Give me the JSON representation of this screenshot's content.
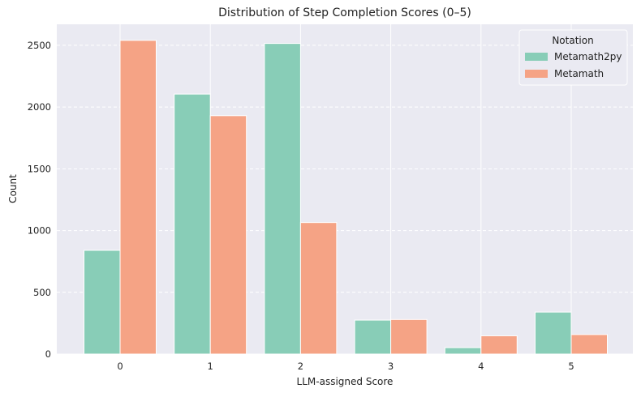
{
  "chart_data": {
    "type": "bar",
    "title": "Distribution of Step Completion Scores (0–5)",
    "xlabel": "LLM-assigned Score",
    "ylabel": "Count",
    "categories": [
      "0",
      "1",
      "2",
      "3",
      "4",
      "5"
    ],
    "yticks": [
      0,
      500,
      1000,
      1500,
      2000,
      2500
    ],
    "ylim": [
      0,
      2670
    ],
    "grid": true,
    "legend": {
      "title": "Notation",
      "position": "top-right"
    },
    "series": [
      {
        "name": "Metamath2py",
        "color": "#88CDB7",
        "values": [
          840,
          2105,
          2515,
          275,
          52,
          340
        ]
      },
      {
        "name": "Metamath",
        "color": "#F5A385",
        "values": [
          2540,
          1930,
          1065,
          280,
          148,
          158
        ]
      }
    ],
    "colors": {
      "plot_background": "#EAEAF2",
      "grid": "#ffffff"
    }
  }
}
